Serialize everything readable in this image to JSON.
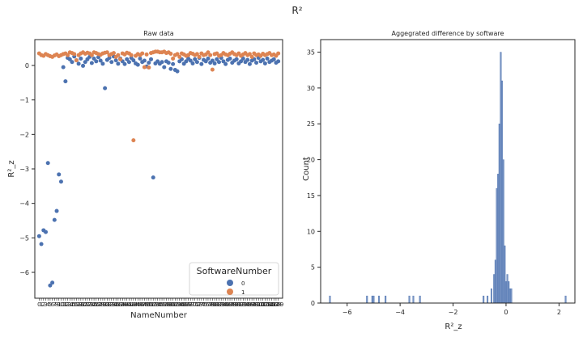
{
  "figure": {
    "suptitle": "R²"
  },
  "chart_data": [
    {
      "type": "scatter",
      "title": "Raw data",
      "xlabel": "NameNumber",
      "ylabel": "R²_z",
      "ylim": [
        -6.75,
        0.75
      ],
      "yticks": [
        0,
        -1,
        -2,
        -3,
        -4,
        -5,
        -6
      ],
      "grid": false,
      "legend": {
        "title": "SoftwareNumber",
        "placement": "lower right",
        "entries": [
          "0",
          "1"
        ]
      },
      "colors": {
        "0": "#4c72b0",
        "1": "#dd8452"
      },
      "series": [
        {
          "name": "0",
          "x": [
            0,
            1,
            2,
            3,
            4,
            5,
            6,
            7,
            8,
            9,
            10,
            11,
            12,
            13,
            14,
            15,
            16,
            17,
            18,
            19,
            20,
            21,
            22,
            23,
            24,
            25,
            26,
            27,
            28,
            29,
            30,
            31,
            32,
            33,
            34,
            35,
            36,
            37,
            38,
            39,
            40,
            41,
            42,
            43,
            44,
            45,
            46,
            47,
            48,
            49,
            50,
            51,
            52,
            53,
            54,
            55,
            56,
            57,
            58,
            59,
            60,
            61,
            62,
            63,
            64,
            65,
            66,
            67,
            68,
            69,
            70,
            71,
            72,
            73,
            74,
            75,
            76,
            77,
            78,
            79,
            80,
            81,
            82,
            83,
            84,
            85,
            86,
            87,
            88,
            89,
            90,
            91,
            92,
            93,
            94,
            95,
            96,
            97,
            98,
            99,
            100,
            101,
            102,
            103,
            104,
            105,
            106,
            107,
            108,
            109
          ],
          "y": [
            -4.95,
            -5.18,
            -4.78,
            -4.83,
            -2.83,
            -6.38,
            -6.3,
            -4.48,
            -4.22,
            -3.16,
            -3.37,
            -0.05,
            -0.46,
            0.22,
            0.18,
            0.1,
            0.26,
            0.15,
            0.05,
            0.2,
            -0.01,
            0.1,
            0.18,
            0.25,
            0.07,
            0.2,
            0.12,
            0.24,
            0.14,
            0.05,
            -0.66,
            0.16,
            0.22,
            0.1,
            0.26,
            0.15,
            0.05,
            0.2,
            0.12,
            0.04,
            0.18,
            0.1,
            0.22,
            0.15,
            0.06,
            0.02,
            0.2,
            0.1,
            0.14,
            -0.03,
            0.08,
            0.18,
            -3.25,
            0.06,
            0.12,
            0.05,
            0.1,
            -0.05,
            0.12,
            0.08,
            -0.1,
            0.04,
            -0.13,
            -0.17,
            0.12,
            0.18,
            0.05,
            0.12,
            0.2,
            0.14,
            0.06,
            0.18,
            0.1,
            0.22,
            0.04,
            0.16,
            0.12,
            0.2,
            0.08,
            0.14,
            0.06,
            0.18,
            0.1,
            0.22,
            0.12,
            0.04,
            0.16,
            0.2,
            0.08,
            0.14,
            0.18,
            0.06,
            0.12,
            0.2,
            0.1,
            0.16,
            0.04,
            0.14,
            0.18,
            0.08,
            0.22,
            0.12,
            0.16,
            0.06,
            0.2,
            0.1,
            0.14,
            0.18,
            0.08,
            0.12
          ]
        },
        {
          "name": "1",
          "x": [
            0,
            1,
            2,
            3,
            4,
            5,
            6,
            7,
            8,
            9,
            10,
            11,
            12,
            13,
            14,
            15,
            16,
            17,
            18,
            19,
            20,
            21,
            22,
            23,
            24,
            25,
            26,
            27,
            28,
            29,
            30,
            31,
            32,
            33,
            34,
            35,
            36,
            37,
            38,
            39,
            40,
            41,
            42,
            43,
            44,
            45,
            46,
            47,
            48,
            49,
            50,
            51,
            52,
            53,
            54,
            55,
            56,
            57,
            58,
            59,
            60,
            61,
            62,
            63,
            64,
            65,
            66,
            67,
            68,
            69,
            70,
            71,
            72,
            73,
            74,
            75,
            76,
            77,
            78,
            79,
            80,
            81,
            82,
            83,
            84,
            85,
            86,
            87,
            88,
            89,
            90,
            91,
            92,
            93,
            94,
            95,
            96,
            97,
            98,
            99,
            100,
            101,
            102,
            103,
            104,
            105,
            106,
            107,
            108,
            109
          ],
          "y": [
            0.35,
            0.3,
            0.28,
            0.33,
            0.3,
            0.27,
            0.25,
            0.29,
            0.32,
            0.27,
            0.3,
            0.33,
            0.35,
            0.3,
            0.38,
            0.36,
            0.33,
            0.15,
            0.3,
            0.35,
            0.38,
            0.34,
            0.37,
            0.35,
            0.3,
            0.38,
            0.36,
            0.33,
            0.31,
            0.35,
            0.37,
            0.38,
            0.3,
            0.33,
            0.36,
            0.25,
            0.3,
            0.18,
            0.35,
            0.32,
            0.37,
            0.35,
            0.3,
            -2.17,
            0.28,
            0.33,
            0.3,
            0.35,
            -0.05,
            0.32,
            -0.06,
            0.36,
            0.38,
            0.4,
            0.4,
            0.38,
            0.38,
            0.4,
            0.36,
            0.38,
            0.34,
            0.2,
            0.3,
            0.33,
            0.25,
            0.35,
            0.32,
            0.28,
            0.3,
            0.36,
            0.34,
            0.3,
            0.33,
            0.25,
            0.35,
            0.3,
            0.32,
            0.38,
            0.3,
            -0.12,
            0.33,
            0.35,
            0.28,
            0.3,
            0.36,
            0.32,
            0.3,
            0.34,
            0.38,
            0.33,
            0.3,
            0.35,
            0.28,
            0.32,
            0.36,
            0.3,
            0.33,
            0.25,
            0.35,
            0.3,
            0.32,
            0.28,
            0.34,
            0.3,
            0.33,
            0.36,
            0.3,
            0.32,
            0.28,
            0.35
          ]
        }
      ]
    },
    {
      "type": "bar",
      "subtype": "histogram",
      "title": "Aggegrated difference by software",
      "xlabel": "R²_z",
      "ylabel": "Count",
      "xlim": [
        -7.0,
        2.6
      ],
      "ylim": [
        0,
        36.75
      ],
      "xticks": [
        -6,
        -4,
        -2,
        0,
        2
      ],
      "yticks": [
        0,
        5,
        10,
        15,
        20,
        25,
        30,
        35
      ],
      "bin_width": 0.05,
      "color": "#4c72b0",
      "bins": [
        {
          "x": -6.65,
          "count": 1
        },
        {
          "x": -5.25,
          "count": 1
        },
        {
          "x": -5.05,
          "count": 1
        },
        {
          "x": -5.0,
          "count": 1
        },
        {
          "x": -4.8,
          "count": 1
        },
        {
          "x": -4.55,
          "count": 1
        },
        {
          "x": -3.65,
          "count": 1
        },
        {
          "x": -3.5,
          "count": 1
        },
        {
          "x": -3.25,
          "count": 1
        },
        {
          "x": -0.85,
          "count": 1
        },
        {
          "x": -0.7,
          "count": 1
        },
        {
          "x": -0.55,
          "count": 2
        },
        {
          "x": -0.45,
          "count": 4
        },
        {
          "x": -0.4,
          "count": 6
        },
        {
          "x": -0.35,
          "count": 16
        },
        {
          "x": -0.3,
          "count": 18
        },
        {
          "x": -0.25,
          "count": 25
        },
        {
          "x": -0.2,
          "count": 35
        },
        {
          "x": -0.15,
          "count": 31
        },
        {
          "x": -0.1,
          "count": 20
        },
        {
          "x": -0.05,
          "count": 8
        },
        {
          "x": 0.0,
          "count": 3
        },
        {
          "x": 0.05,
          "count": 4
        },
        {
          "x": 0.1,
          "count": 3
        },
        {
          "x": 0.15,
          "count": 2
        },
        {
          "x": 0.2,
          "count": 2
        },
        {
          "x": 2.25,
          "count": 1
        }
      ]
    }
  ]
}
